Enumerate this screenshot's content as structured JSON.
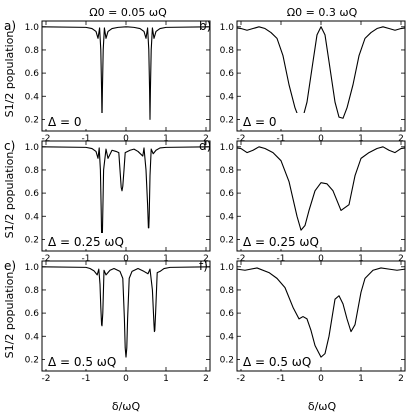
{
  "figure": {
    "column_titles": [
      "Ω0 = 0.05 ωQ",
      "Ω0 = 0.3 ωQ"
    ],
    "ylabel": "S1/2 population",
    "xlabel": "δ/ωQ"
  },
  "chart_data": [
    {
      "type": "line",
      "panel": "a)",
      "title": "Ω0 = 0.05 ωQ",
      "annotation": "Δ = 0",
      "xlim": [
        -2.1,
        2.1
      ],
      "ylim": [
        0.1,
        1.05
      ],
      "xticks": [
        -2,
        -1,
        0,
        1,
        2
      ],
      "yticks": [
        0.2,
        0.4,
        0.6,
        0.8,
        1.0
      ],
      "x": [
        -2.1,
        -1.0,
        -0.85,
        -0.75,
        -0.7,
        -0.66,
        -0.63,
        -0.61,
        -0.6,
        -0.59,
        -0.57,
        -0.54,
        -0.5,
        -0.45,
        -0.35,
        -0.2,
        0.0,
        0.2,
        0.35,
        0.45,
        0.5,
        0.54,
        0.57,
        0.59,
        0.6,
        0.61,
        0.63,
        0.66,
        0.7,
        0.75,
        0.85,
        1.0,
        2.1
      ],
      "y": [
        1.0,
        0.995,
        0.985,
        0.96,
        0.9,
        0.99,
        0.8,
        0.45,
        0.2,
        0.45,
        0.8,
        0.99,
        0.9,
        0.96,
        0.985,
        0.995,
        1.0,
        0.995,
        0.985,
        0.96,
        0.9,
        0.99,
        0.8,
        0.45,
        0.2,
        0.45,
        0.8,
        0.99,
        0.9,
        0.96,
        0.985,
        0.995,
        1.0
      ]
    },
    {
      "type": "line",
      "panel": "b)",
      "title": "Ω0 = 0.3 ωQ",
      "annotation": "Δ = 0",
      "xlim": [
        -2.1,
        2.1
      ],
      "ylim": [
        0.1,
        1.05
      ],
      "xticks": [
        -2,
        -1,
        0,
        1,
        2
      ],
      "yticks": [
        0.2,
        0.4,
        0.6,
        0.8,
        1.0
      ],
      "x": [
        -2.1,
        -2.0,
        -1.85,
        -1.7,
        -1.55,
        -1.4,
        -1.25,
        -1.1,
        -0.95,
        -0.8,
        -0.65,
        -0.55,
        -0.45,
        -0.35,
        -0.2,
        -0.1,
        0.0,
        0.1,
        0.2,
        0.35,
        0.45,
        0.55,
        0.65,
        0.8,
        0.95,
        1.1,
        1.25,
        1.4,
        1.55,
        1.7,
        1.85,
        2.0,
        2.1
      ],
      "y": [
        0.99,
        0.985,
        0.97,
        0.985,
        1.0,
        0.985,
        0.95,
        0.9,
        0.75,
        0.5,
        0.3,
        0.21,
        0.22,
        0.35,
        0.7,
        0.93,
        1.0,
        0.93,
        0.7,
        0.35,
        0.22,
        0.21,
        0.3,
        0.5,
        0.75,
        0.9,
        0.95,
        0.985,
        1.0,
        0.985,
        0.97,
        0.985,
        0.99
      ]
    },
    {
      "type": "line",
      "panel": "c)",
      "title": "",
      "annotation": "Δ = 0.25 ωQ",
      "xlim": [
        -2.1,
        2.1
      ],
      "ylim": [
        0.1,
        1.05
      ],
      "xticks": [
        -2,
        -1,
        0,
        1,
        2
      ],
      "yticks": [
        0.2,
        0.4,
        0.6,
        0.8,
        1.0
      ],
      "x": [
        -2.1,
        -1.0,
        -0.85,
        -0.75,
        -0.7,
        -0.67,
        -0.64,
        -0.62,
        -0.61,
        -0.6,
        -0.59,
        -0.56,
        -0.5,
        -0.45,
        -0.35,
        -0.25,
        -0.18,
        -0.15,
        -0.12,
        -0.1,
        -0.08,
        -0.05,
        -0.02,
        0.1,
        0.2,
        0.3,
        0.42,
        0.45,
        0.5,
        0.54,
        0.56,
        0.57,
        0.58,
        0.6,
        0.63,
        0.68,
        0.75,
        0.85,
        1.0,
        2.1
      ],
      "y": [
        1.0,
        0.995,
        0.985,
        0.96,
        0.9,
        0.99,
        0.8,
        0.45,
        0.24,
        0.17,
        0.25,
        0.8,
        0.98,
        0.9,
        0.97,
        0.96,
        0.95,
        0.8,
        0.65,
        0.62,
        0.66,
        0.8,
        0.95,
        0.97,
        0.98,
        0.96,
        0.92,
        0.99,
        0.8,
        0.5,
        0.3,
        0.3,
        0.4,
        0.75,
        0.98,
        0.94,
        0.97,
        0.99,
        0.995,
        1.0
      ]
    },
    {
      "type": "line",
      "panel": "d)",
      "title": "",
      "annotation": "Δ = 0.25 ωQ",
      "xlim": [
        -2.1,
        2.1
      ],
      "ylim": [
        0.1,
        1.05
      ],
      "xticks": [
        -2,
        -1,
        0,
        1,
        2
      ],
      "yticks": [
        0.2,
        0.4,
        0.6,
        0.8,
        1.0
      ],
      "x": [
        -2.1,
        -2.0,
        -1.85,
        -1.7,
        -1.55,
        -1.4,
        -1.2,
        -1.0,
        -0.8,
        -0.6,
        -0.5,
        -0.4,
        -0.3,
        -0.15,
        0.0,
        0.15,
        0.3,
        0.5,
        0.7,
        0.85,
        1.0,
        1.2,
        1.4,
        1.55,
        1.7,
        1.85,
        2.0,
        2.1
      ],
      "y": [
        0.99,
        0.985,
        0.95,
        0.97,
        1.0,
        0.985,
        0.95,
        0.88,
        0.7,
        0.4,
        0.28,
        0.32,
        0.45,
        0.62,
        0.69,
        0.68,
        0.62,
        0.45,
        0.5,
        0.75,
        0.9,
        0.95,
        0.985,
        1.0,
        0.97,
        0.95,
        0.985,
        0.99
      ]
    },
    {
      "type": "line",
      "panel": "e)",
      "title": "",
      "annotation": "Δ = 0.5 ωQ",
      "xlim": [
        -2.1,
        2.1
      ],
      "ylim": [
        0.1,
        1.05
      ],
      "xticks": [
        -2,
        -1,
        0,
        1,
        2
      ],
      "yticks": [
        0.2,
        0.4,
        0.6,
        0.8,
        1.0
      ],
      "x": [
        -2.1,
        -1.0,
        -0.9,
        -0.8,
        -0.72,
        -0.68,
        -0.65,
        -0.63,
        -0.61,
        -0.6,
        -0.58,
        -0.55,
        -0.5,
        -0.4,
        -0.3,
        -0.15,
        -0.08,
        -0.04,
        -0.02,
        0.0,
        0.02,
        0.04,
        0.08,
        0.15,
        0.3,
        0.45,
        0.55,
        0.6,
        0.66,
        0.7,
        0.71,
        0.72,
        0.74,
        0.78,
        0.85,
        0.95,
        1.1,
        2.1
      ],
      "y": [
        1.0,
        0.995,
        0.985,
        0.965,
        0.93,
        0.98,
        0.85,
        0.65,
        0.5,
        0.49,
        0.6,
        0.97,
        0.93,
        0.97,
        0.985,
        0.96,
        0.9,
        0.55,
        0.3,
        0.22,
        0.3,
        0.55,
        0.9,
        0.96,
        0.985,
        0.96,
        0.94,
        0.98,
        0.8,
        0.5,
        0.44,
        0.45,
        0.6,
        0.95,
        0.96,
        0.985,
        0.995,
        1.0
      ]
    },
    {
      "type": "line",
      "panel": "f)",
      "title": "",
      "annotation": "Δ = 0.5 ωQ",
      "xlim": [
        -2.1,
        2.1
      ],
      "ylim": [
        0.1,
        1.05
      ],
      "xticks": [
        -2,
        -1,
        0,
        1,
        2
      ],
      "yticks": [
        0.2,
        0.4,
        0.6,
        0.8,
        1.0
      ],
      "x": [
        -2.1,
        -1.9,
        -1.6,
        -1.3,
        -1.1,
        -0.9,
        -0.7,
        -0.55,
        -0.45,
        -0.35,
        -0.25,
        -0.15,
        0.0,
        0.1,
        0.2,
        0.35,
        0.45,
        0.55,
        0.65,
        0.75,
        0.85,
        1.0,
        1.1,
        1.3,
        1.5,
        1.7,
        1.9,
        2.1
      ],
      "y": [
        0.98,
        0.97,
        0.99,
        0.95,
        0.9,
        0.82,
        0.65,
        0.55,
        0.57,
        0.55,
        0.45,
        0.32,
        0.22,
        0.25,
        0.4,
        0.72,
        0.75,
        0.68,
        0.55,
        0.44,
        0.5,
        0.78,
        0.9,
        0.97,
        0.99,
        0.98,
        0.97,
        0.98
      ]
    }
  ]
}
